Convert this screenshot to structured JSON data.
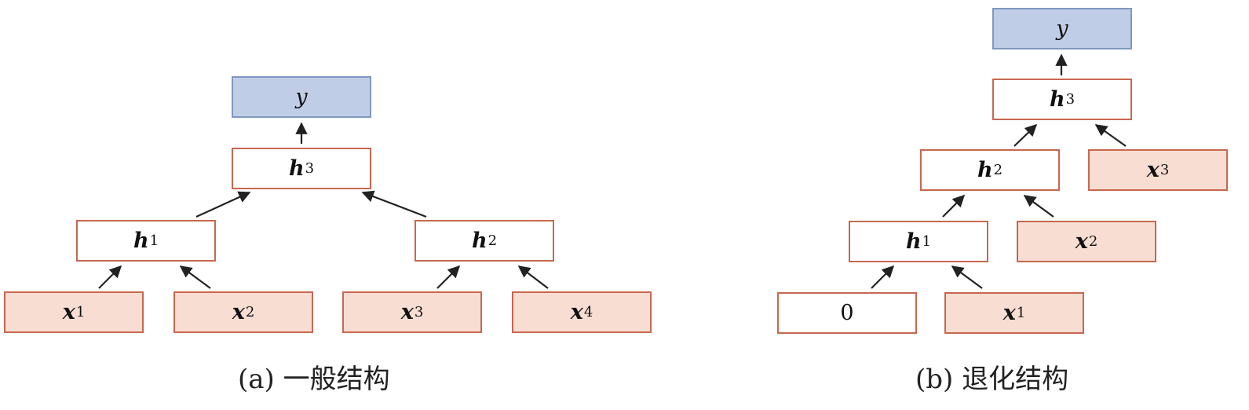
{
  "panel_a": {
    "caption": "(a) 一般结构",
    "nodes": {
      "y": {
        "sym": "y",
        "sub": ""
      },
      "h3": {
        "sym": "h",
        "sub": "3"
      },
      "h1": {
        "sym": "h",
        "sub": "1"
      },
      "h2": {
        "sym": "h",
        "sub": "2"
      },
      "x1": {
        "sym": "x",
        "sub": "1"
      },
      "x2": {
        "sym": "x",
        "sub": "2"
      },
      "x3": {
        "sym": "x",
        "sub": "3"
      },
      "x4": {
        "sym": "x",
        "sub": "4"
      }
    },
    "edges": [
      [
        "x1",
        "h1"
      ],
      [
        "x2",
        "h1"
      ],
      [
        "x3",
        "h2"
      ],
      [
        "x4",
        "h2"
      ],
      [
        "h1",
        "h3"
      ],
      [
        "h2",
        "h3"
      ],
      [
        "h3",
        "y"
      ]
    ]
  },
  "panel_b": {
    "caption": "(b) 退化结构",
    "nodes": {
      "y": {
        "sym": "y",
        "sub": ""
      },
      "h3": {
        "sym": "h",
        "sub": "3"
      },
      "h2": {
        "sym": "h",
        "sub": "2"
      },
      "x3": {
        "sym": "x",
        "sub": "3"
      },
      "h1": {
        "sym": "h",
        "sub": "1"
      },
      "x2": {
        "sym": "x",
        "sub": "2"
      },
      "zero": {
        "sym": "0",
        "sub": ""
      },
      "x1": {
        "sym": "x",
        "sub": "1"
      }
    },
    "edges": [
      [
        "zero",
        "h1"
      ],
      [
        "x1",
        "h1"
      ],
      [
        "h1",
        "h2"
      ],
      [
        "x2",
        "h2"
      ],
      [
        "h2",
        "h3"
      ],
      [
        "x3",
        "h3"
      ],
      [
        "h3",
        "y"
      ]
    ]
  },
  "colors": {
    "input_fill": "#f7ddd2",
    "node_border": "#c8674f",
    "output_fill": "#bfcde6",
    "output_border": "#7f98bf",
    "arrow": "#222222"
  }
}
